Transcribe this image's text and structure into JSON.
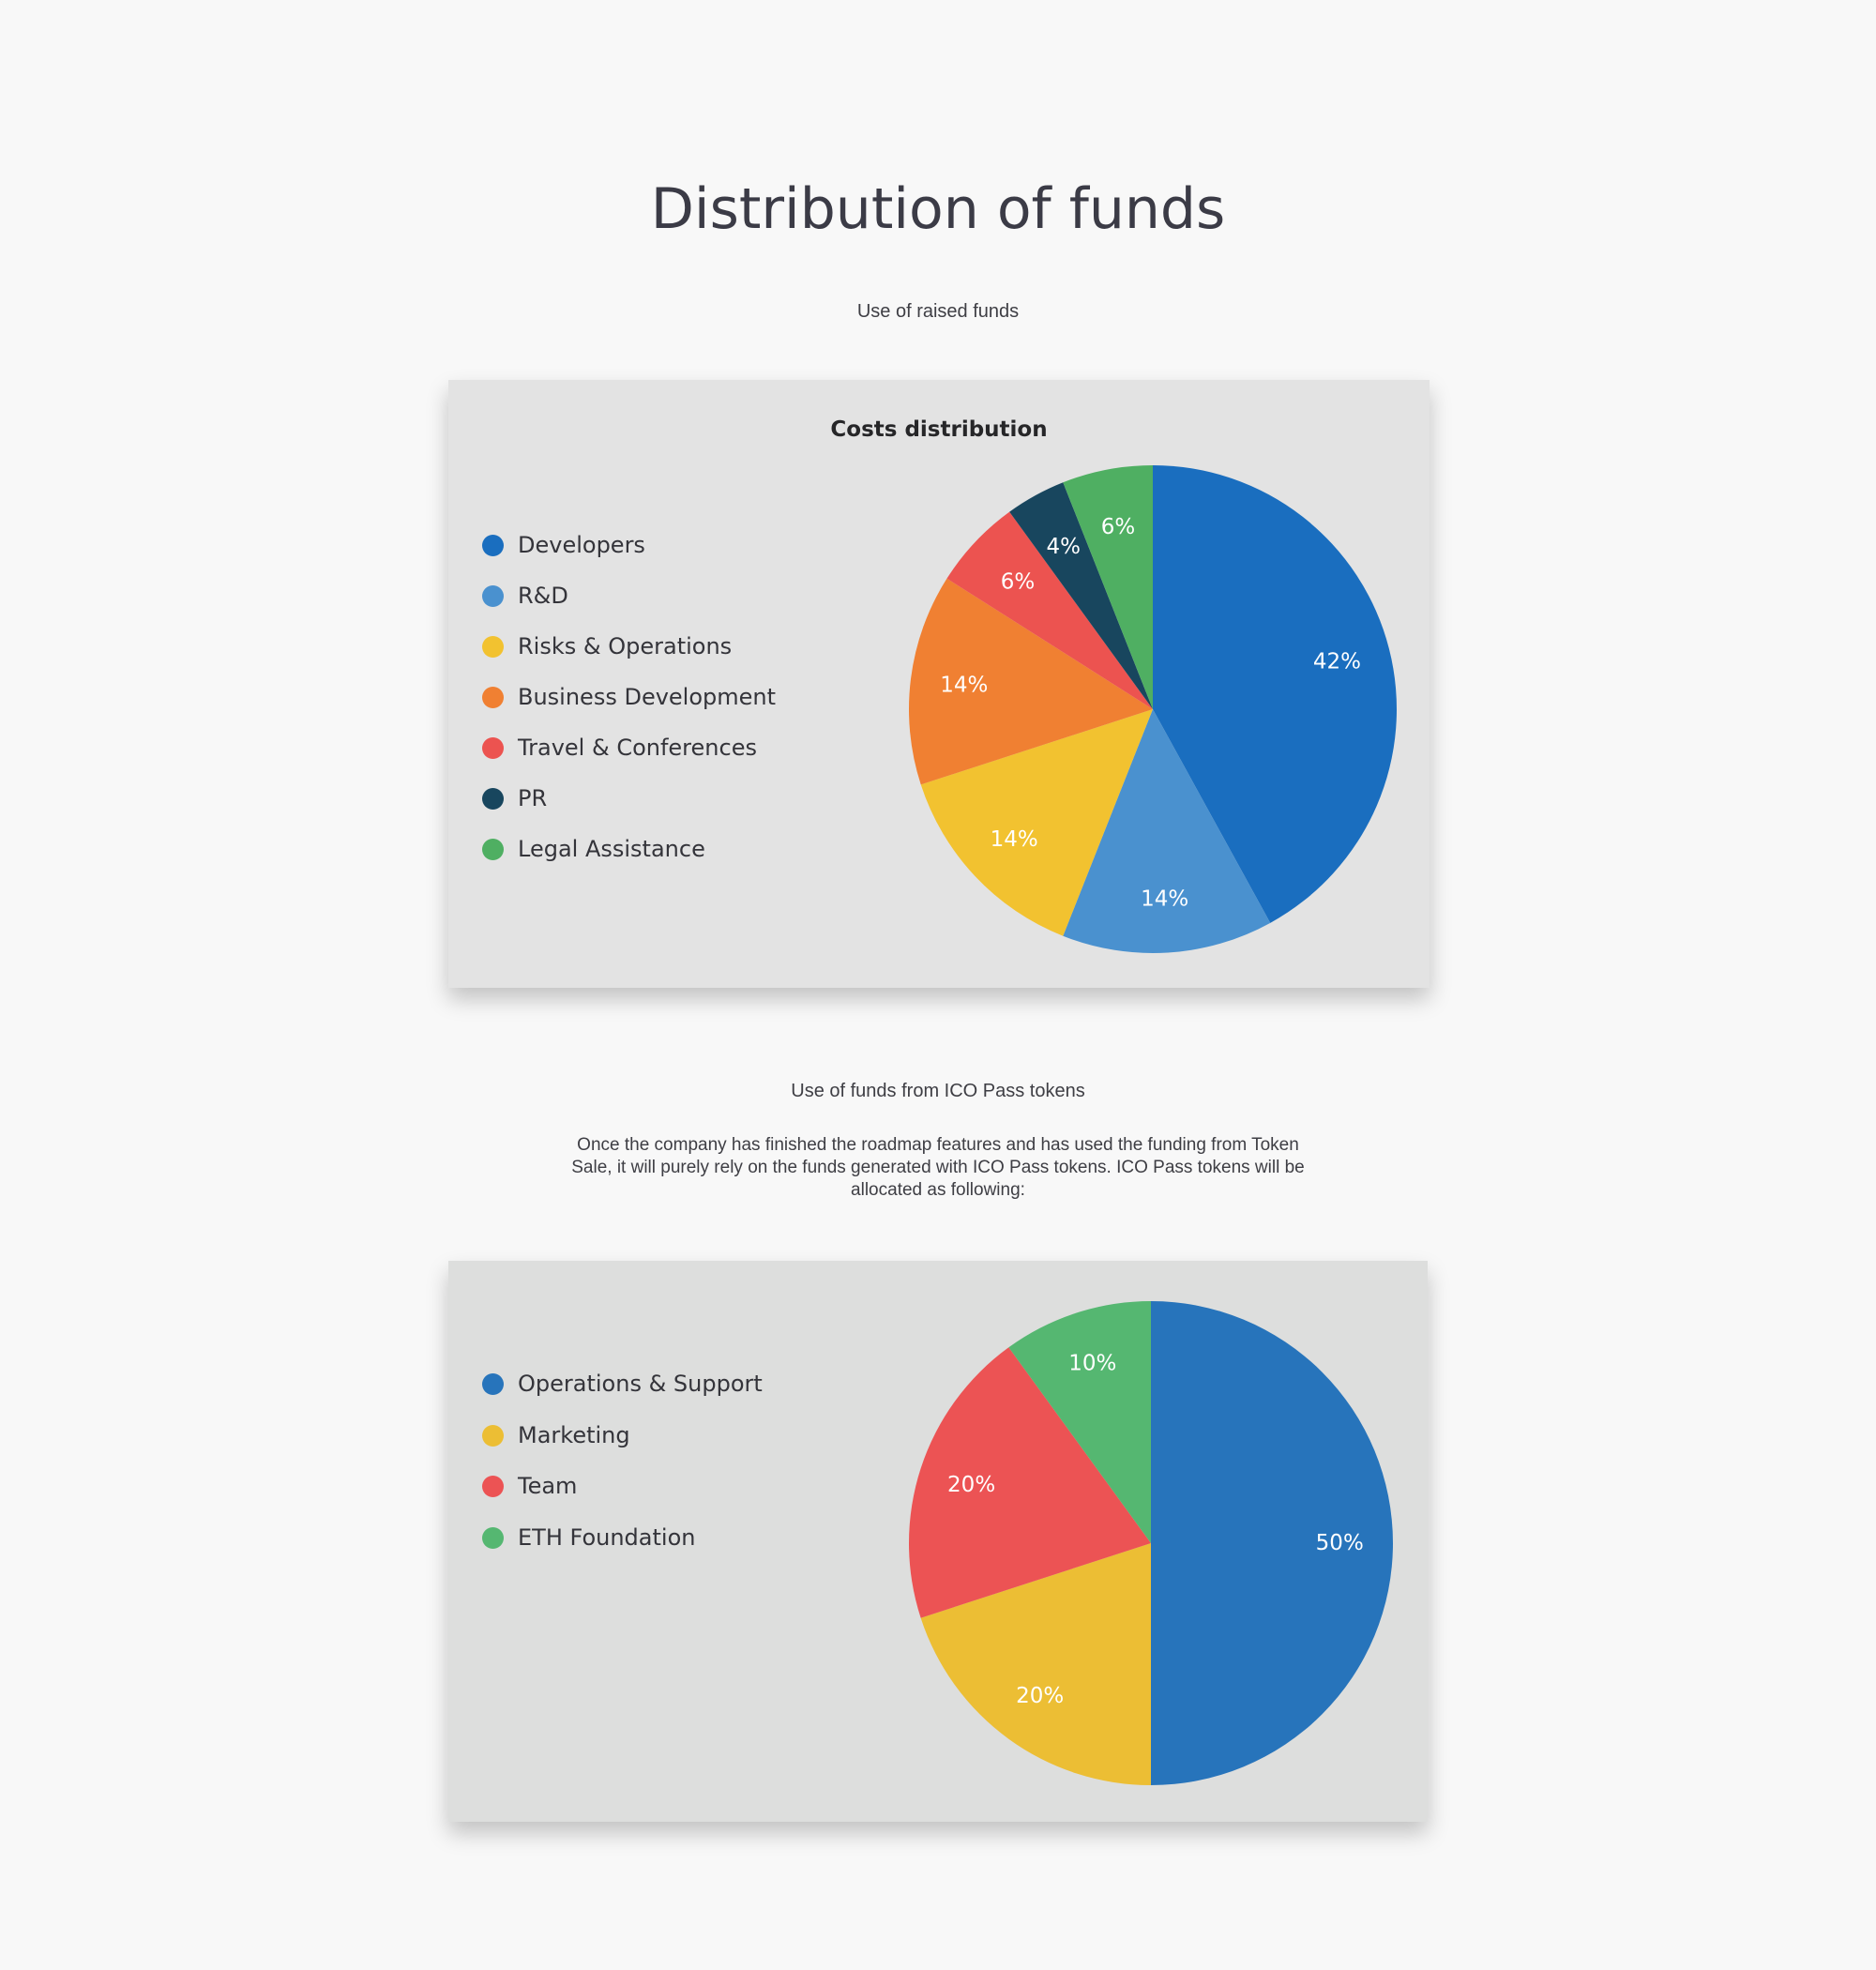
{
  "page_title": "Distribution of funds",
  "section1": {
    "subtitle": "Use of raised funds"
  },
  "section2": {
    "subtitle": "Use of funds from ICO Pass tokens",
    "paragraph": "Once the company has finished the roadmap features and has used the funding from Token Sale, it will purely rely on the funds generated with ICO Pass tokens. ICO Pass tokens will be allocated as following:"
  },
  "chart_data": [
    {
      "type": "pie",
      "title": "Costs distribution",
      "legend_placement": "left",
      "categories": [
        "Developers",
        "R&D",
        "Risks & Operations",
        "Business Development",
        "Travel & Conferences",
        "PR",
        "Legal Assistance"
      ],
      "values": [
        42,
        14,
        14,
        14,
        6,
        4,
        6
      ],
      "labels": [
        "42%",
        "14%",
        "14%",
        "14%",
        "6%",
        "4%",
        "6%"
      ],
      "colors": [
        "#1a6ebf",
        "#4a91cf",
        "#f2c230",
        "#f08032",
        "#ec5350",
        "#18465e",
        "#4faf62"
      ]
    },
    {
      "type": "pie",
      "title": "",
      "legend_placement": "left",
      "categories": [
        "Operations & Support",
        "Marketing",
        "Team",
        "ETH Foundation"
      ],
      "values": [
        50,
        20,
        20,
        10
      ],
      "labels": [
        "50%",
        "20%",
        "20%",
        "10%"
      ],
      "colors": [
        "#2774bb",
        "#ecbe34",
        "#ec5354",
        "#55b771"
      ]
    }
  ]
}
